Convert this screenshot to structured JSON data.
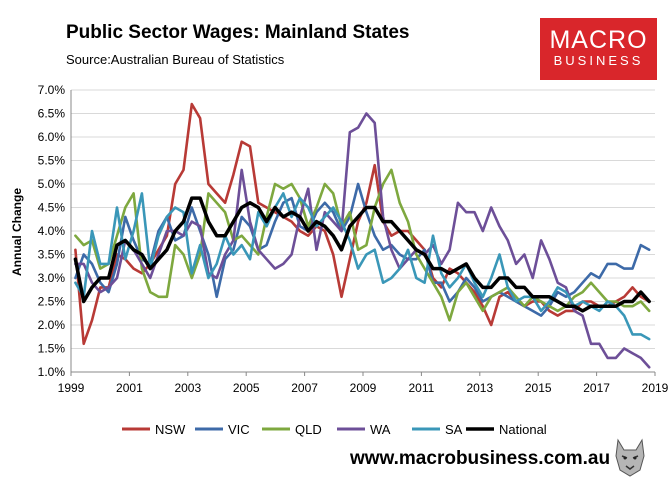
{
  "chart_data": {
    "type": "line",
    "title": "Public Sector Wages: Mainland States",
    "subtitle": "Source:Australian Bureau of Statistics",
    "ylabel": "Annual Change",
    "xlabel": "",
    "xlim": [
      1999,
      2019
    ],
    "ylim": [
      1.0,
      7.0
    ],
    "x_ticks": [
      "1999",
      "2001",
      "2003",
      "2005",
      "2007",
      "2009",
      "2011",
      "2013",
      "2015",
      "2017",
      "2019"
    ],
    "y_ticks": [
      "1.0%",
      "1.5%",
      "2.0%",
      "2.5%",
      "3.0%",
      "3.5%",
      "4.0%",
      "4.5%",
      "5.0%",
      "5.5%",
      "6.0%",
      "6.5%",
      "7.0%"
    ],
    "grid": "horizontal",
    "legend_position": "bottom",
    "series": [
      {
        "name": "NSW",
        "color": "#b83a36",
        "values": [
          3.6,
          1.6,
          2.1,
          2.8,
          2.8,
          3.5,
          3.4,
          3.2,
          3.1,
          3.3,
          3.6,
          3.9,
          5.0,
          5.3,
          6.7,
          6.4,
          5.0,
          4.8,
          4.6,
          5.2,
          5.9,
          5.8,
          4.6,
          4.5,
          4.4,
          4.3,
          4.2,
          4.0,
          3.9,
          4.1,
          4.0,
          3.5,
          2.6,
          3.4,
          4.2,
          4.6,
          5.4,
          4.2,
          3.9,
          4.0,
          4.0,
          3.8,
          3.6,
          3.0,
          2.8,
          3.2,
          3.1,
          2.9,
          2.7,
          2.4,
          2.0,
          2.6,
          2.7,
          2.5,
          2.4,
          2.5,
          2.5,
          2.3,
          2.2,
          2.3,
          2.3,
          2.5,
          2.5,
          2.4,
          2.4,
          2.5,
          2.6,
          2.8,
          2.6,
          2.5
        ]
      },
      {
        "name": "VIC",
        "color": "#3d6aa8",
        "values": [
          3.0,
          3.5,
          3.3,
          2.9,
          2.7,
          3.3,
          4.3,
          3.8,
          3.4,
          3.3,
          4.0,
          4.3,
          3.8,
          3.9,
          4.5,
          4.0,
          3.5,
          2.6,
          3.4,
          3.6,
          4.3,
          4.1,
          3.6,
          3.7,
          4.2,
          4.6,
          4.7,
          4.1,
          4.0,
          4.4,
          4.6,
          4.4,
          4.0,
          4.3,
          5.0,
          4.4,
          3.9,
          3.6,
          3.7,
          3.5,
          3.4,
          3.4,
          3.6,
          2.9,
          2.9,
          2.5,
          2.7,
          3.0,
          2.8,
          2.5,
          2.6,
          2.7,
          2.6,
          2.5,
          2.4,
          2.3,
          2.2,
          2.4,
          2.7,
          2.6,
          2.7,
          2.9,
          3.1,
          3.0,
          3.3,
          3.3,
          3.2,
          3.2,
          3.7,
          3.6
        ]
      },
      {
        "name": "QLD",
        "color": "#7ea83f",
        "values": [
          3.9,
          3.7,
          3.8,
          3.2,
          3.3,
          3.9,
          4.5,
          4.8,
          3.2,
          2.7,
          2.6,
          2.6,
          3.7,
          3.5,
          3.0,
          3.5,
          4.8,
          4.6,
          4.4,
          3.8,
          3.9,
          3.7,
          3.5,
          4.3,
          5.0,
          4.9,
          5.0,
          4.7,
          4.1,
          4.5,
          5.0,
          4.8,
          4.1,
          4.4,
          3.6,
          3.7,
          4.5,
          5.0,
          5.3,
          4.6,
          4.2,
          3.5,
          3.2,
          2.9,
          2.6,
          2.1,
          2.7,
          2.9,
          2.6,
          2.3,
          2.6,
          2.7,
          2.8,
          2.6,
          2.4,
          2.6,
          2.5,
          2.4,
          2.3,
          2.4,
          2.6,
          2.7,
          2.9,
          2.7,
          2.5,
          2.5,
          2.4,
          2.4,
          2.5,
          2.3
        ]
      },
      {
        "name": "WA",
        "color": "#6d4f98",
        "values": [
          3.3,
          3.3,
          2.9,
          2.7,
          2.8,
          3.0,
          3.8,
          3.6,
          3.3,
          3.0,
          3.5,
          4.0,
          4.0,
          3.9,
          4.2,
          4.1,
          3.1,
          3.0,
          3.5,
          3.8,
          5.3,
          4.2,
          3.6,
          3.4,
          3.2,
          3.3,
          3.5,
          4.3,
          4.9,
          3.6,
          4.4,
          4.2,
          4.0,
          6.1,
          6.2,
          6.5,
          6.3,
          4.3,
          3.6,
          3.2,
          3.4,
          3.6,
          3.5,
          3.7,
          3.3,
          3.6,
          4.6,
          4.4,
          4.4,
          4.0,
          4.5,
          4.1,
          3.8,
          3.3,
          3.5,
          3.0,
          3.8,
          3.4,
          2.9,
          2.8,
          2.3,
          2.2,
          1.6,
          1.6,
          1.3,
          1.3,
          1.5,
          1.4,
          1.3,
          1.1
        ]
      },
      {
        "name": "SA",
        "color": "#3a97b8",
        "values": [
          2.9,
          2.6,
          4.0,
          3.3,
          3.3,
          4.5,
          3.4,
          4.0,
          4.8,
          3.2,
          3.9,
          4.3,
          4.5,
          4.4,
          3.1,
          3.7,
          3.0,
          3.3,
          3.9,
          3.5,
          3.7,
          3.4,
          4.4,
          4.1,
          4.5,
          4.8,
          4.3,
          4.7,
          4.5,
          4.1,
          4.3,
          4.5,
          4.2,
          3.8,
          3.2,
          3.5,
          3.6,
          2.9,
          3.0,
          3.2,
          3.6,
          3.0,
          2.9,
          3.9,
          3.1,
          2.8,
          3.0,
          3.3,
          2.9,
          2.6,
          3.0,
          3.5,
          2.8,
          2.5,
          2.6,
          2.6,
          2.3,
          2.5,
          2.8,
          2.7,
          2.4,
          2.5,
          2.4,
          2.3,
          2.5,
          2.4,
          2.2,
          1.8,
          1.8,
          1.7
        ]
      },
      {
        "name": "National",
        "color": "#000000",
        "values": [
          3.4,
          2.5,
          2.8,
          3.0,
          3.0,
          3.7,
          3.8,
          3.6,
          3.5,
          3.2,
          3.4,
          3.6,
          4.0,
          4.2,
          4.7,
          4.7,
          4.2,
          3.9,
          3.9,
          4.2,
          4.5,
          4.6,
          4.5,
          4.2,
          4.5,
          4.3,
          4.4,
          4.3,
          4.0,
          4.2,
          4.1,
          3.9,
          3.6,
          4.1,
          4.3,
          4.5,
          4.5,
          4.2,
          4.2,
          4.0,
          3.8,
          3.6,
          3.5,
          3.2,
          3.2,
          3.1,
          3.2,
          3.3,
          3.0,
          2.8,
          2.8,
          3.0,
          3.0,
          2.8,
          2.8,
          2.6,
          2.6,
          2.6,
          2.5,
          2.4,
          2.4,
          2.3,
          2.4,
          2.4,
          2.4,
          2.4,
          2.5,
          2.5,
          2.7,
          2.5
        ]
      }
    ]
  },
  "branding": {
    "logo_line1": "MACRO",
    "logo_line2": "BUSINESS",
    "url": "www.macrobusiness.com.au"
  }
}
